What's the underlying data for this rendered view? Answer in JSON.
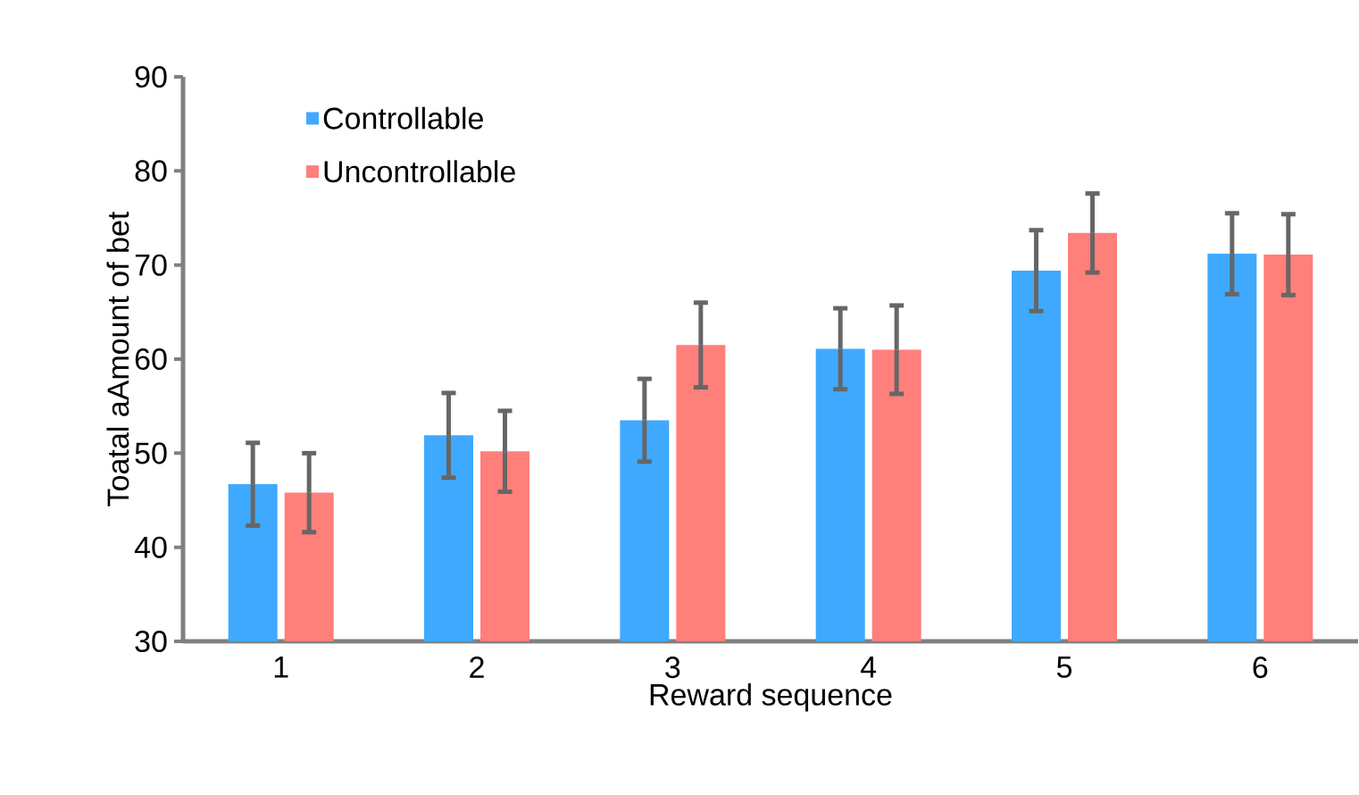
{
  "chart_data": {
    "type": "bar",
    "xlabel": "Reward sequence",
    "ylabel": "Toatal aAmount of bet",
    "categories": [
      "1",
      "2",
      "3",
      "4",
      "5",
      "6"
    ],
    "series": [
      {
        "name": "Controllable",
        "color": "#3fa9ff",
        "values": [
          46.7,
          51.9,
          53.5,
          61.1,
          69.4,
          71.2
        ],
        "errors": [
          4.4,
          4.5,
          4.4,
          4.3,
          4.3,
          4.3
        ]
      },
      {
        "name": "Uncontrollable",
        "color": "#ff7f7a",
        "values": [
          45.8,
          50.2,
          61.5,
          61.0,
          73.4,
          71.1
        ],
        "errors": [
          4.2,
          4.3,
          4.5,
          4.7,
          4.2,
          4.3
        ]
      }
    ],
    "ylim": [
      30,
      90
    ],
    "yticks": [
      30,
      40,
      50,
      60,
      70,
      80,
      90
    ],
    "grid": false,
    "legend": "top left"
  }
}
